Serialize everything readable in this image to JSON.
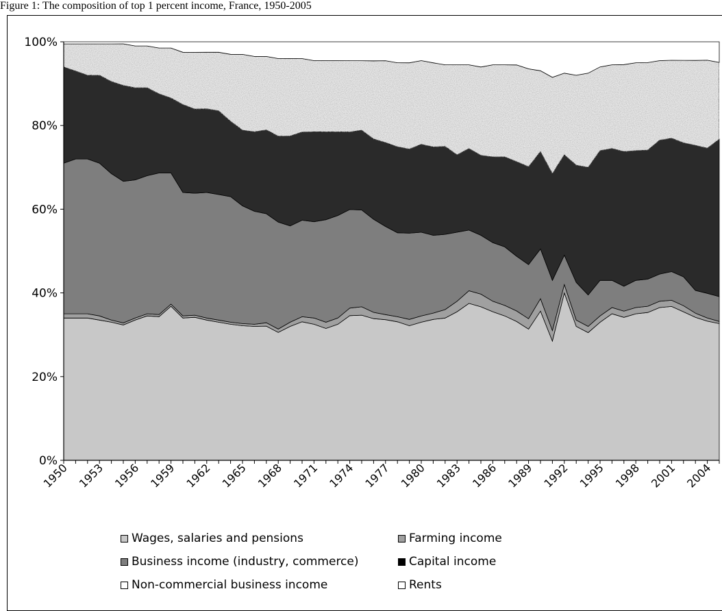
{
  "caption": "Figure 1: The composition of top 1 percent income, France, 1950-2005",
  "chart_data": {
    "type": "area",
    "stacked": true,
    "percent": true,
    "x": [
      1950,
      1951,
      1952,
      1953,
      1954,
      1955,
      1956,
      1957,
      1958,
      1959,
      1960,
      1961,
      1962,
      1963,
      1964,
      1965,
      1966,
      1967,
      1968,
      1969,
      1970,
      1971,
      1972,
      1973,
      1974,
      1975,
      1976,
      1977,
      1978,
      1979,
      1980,
      1981,
      1982,
      1983,
      1984,
      1985,
      1986,
      1987,
      1988,
      1989,
      1990,
      1991,
      1992,
      1993,
      1994,
      1995,
      1996,
      1997,
      1998,
      1999,
      2000,
      2001,
      2002,
      2003,
      2004,
      2005
    ],
    "x_tick_labels": [
      "1950",
      "1953",
      "1956",
      "1959",
      "1962",
      "1965",
      "1968",
      "1971",
      "1974",
      "1977",
      "1980",
      "1983",
      "1986",
      "1989",
      "1992",
      "1995",
      "1998",
      "2001",
      "2004"
    ],
    "y_tick_labels": [
      "0%",
      "20%",
      "40%",
      "60%",
      "80%",
      "100%"
    ],
    "ylim": [
      0,
      100
    ],
    "xlabel": "",
    "ylabel": "",
    "grid": false,
    "legend_position": "bottom",
    "series": [
      {
        "name": "Wages, salaries and pensions",
        "color": "#c8c8c8",
        "values": [
          34,
          34,
          34,
          33.5,
          33,
          32.5,
          33.5,
          34.5,
          34.5,
          37,
          34,
          34,
          33.5,
          33,
          32.5,
          32,
          32,
          32,
          30.5,
          32,
          33,
          32.5,
          31.5,
          32.5,
          34.5,
          34.5,
          33.5,
          33.5,
          33,
          32,
          33,
          33.5,
          34,
          35.5,
          37.5,
          36.5,
          35.5,
          34.5,
          33,
          31.5,
          36,
          28.5,
          40,
          32,
          30.5,
          33,
          35,
          34.5,
          35,
          35.5,
          36.5,
          37.5,
          36,
          34.5,
          34,
          33
        ]
      },
      {
        "name": "Farming income",
        "color": "#a0a0a0",
        "values": [
          1,
          1,
          1,
          1,
          0.5,
          0.5,
          0.5,
          0.5,
          0.5,
          0.5,
          0.5,
          0.5,
          0.5,
          0.5,
          0.5,
          0.5,
          0.5,
          0.8,
          0.8,
          1,
          1.2,
          1.5,
          1.5,
          1.5,
          1.8,
          2,
          1.5,
          1.2,
          1.2,
          1.5,
          1.5,
          1.5,
          2,
          2.5,
          3,
          3,
          2.5,
          2.5,
          2.5,
          2.5,
          3,
          2.5,
          2,
          1.5,
          1.5,
          1.5,
          1.5,
          1.5,
          1.5,
          1.5,
          1.5,
          1.5,
          1.5,
          1,
          0.8,
          0.5
        ]
      },
      {
        "name": "Business income (industry, commerce)",
        "color": "#7e7e7e",
        "values": [
          36,
          37,
          37,
          36.5,
          35,
          34,
          33,
          33,
          34,
          31.5,
          29.5,
          29,
          30,
          30,
          30,
          28,
          27,
          26,
          25.5,
          23,
          23,
          23,
          24.5,
          24.5,
          23.5,
          23,
          22,
          21,
          20,
          20.5,
          20,
          18.5,
          18,
          16.5,
          14.5,
          14,
          14,
          14,
          13,
          13,
          12,
          12,
          7,
          9,
          7.5,
          8.5,
          6.5,
          6,
          6.5,
          6.5,
          6.5,
          7,
          7,
          5.5,
          6,
          6
        ]
      },
      {
        "name": "Capital income",
        "color": "#2a2a2a",
        "values": [
          23,
          21,
          20,
          21,
          22,
          23,
          22,
          21,
          19,
          18,
          21,
          20,
          20,
          20,
          18,
          18,
          19,
          20,
          20.5,
          21.5,
          21,
          21.5,
          21,
          20,
          18.5,
          19,
          19,
          20,
          20.5,
          20,
          21,
          21,
          21,
          18.5,
          19.5,
          19,
          20.5,
          21.5,
          22.5,
          23.5,
          23.5,
          25.5,
          24,
          28,
          30.5,
          31,
          31.5,
          32.5,
          31,
          31,
          32,
          32.5,
          32.5,
          35,
          35.5,
          38
        ]
      },
      {
        "name": "Non-commercial business income",
        "color": "#e7e7e7",
        "values": [
          5.5,
          6.5,
          7.5,
          7.5,
          9,
          10,
          10,
          10,
          11,
          12,
          12.5,
          13.5,
          13.5,
          14,
          16,
          18,
          18,
          17.5,
          18.5,
          18.5,
          17.5,
          17,
          17,
          17,
          17,
          16.5,
          18.5,
          19.5,
          20,
          20.5,
          20,
          20,
          19.5,
          21.5,
          20,
          21,
          22,
          22,
          23,
          23.5,
          19.5,
          23,
          19.5,
          21.5,
          22.5,
          20,
          20,
          21,
          21,
          21,
          19,
          19,
          20,
          20.5,
          21.5,
          18.5
        ]
      },
      {
        "name": "Rents",
        "color": "#ffffff",
        "values": [
          0.5,
          0.5,
          0.5,
          0.5,
          0.5,
          0.5,
          1,
          1,
          1.5,
          1.5,
          2.5,
          2.5,
          2.5,
          2.5,
          3,
          3,
          3.5,
          3.5,
          4,
          4,
          4,
          4.5,
          4.5,
          4.5,
          4.5,
          4.5,
          4.5,
          4.5,
          5,
          5,
          4.5,
          5,
          5.5,
          5.5,
          5.5,
          6,
          5.5,
          5.5,
          5.5,
          6.5,
          7,
          8.5,
          7.5,
          8,
          7.5,
          6,
          5.5,
          5.5,
          5,
          5,
          4.5,
          4.5,
          4.5,
          4.5,
          4.5,
          5
        ]
      }
    ]
  }
}
